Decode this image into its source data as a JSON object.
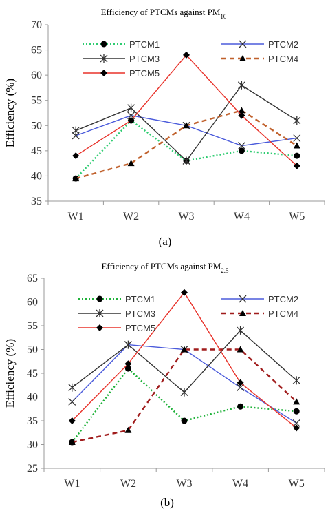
{
  "chart_data": [
    {
      "type": "line",
      "title": "Efficiency of PTCMs against PM",
      "title_subscript": "10",
      "ylabel": "Efficiency (%)",
      "xlabel": "",
      "categories": [
        "W1",
        "W2",
        "W3",
        "W4",
        "W5"
      ],
      "ylim": [
        35,
        70
      ],
      "yticks": [
        35,
        40,
        45,
        50,
        55,
        60,
        65,
        70
      ],
      "grid": false,
      "legend": "top-left, 3 rows x 2 columns",
      "caption": "(a)",
      "series": [
        {
          "name": "PTCM1",
          "values": [
            39.5,
            51,
            43,
            45,
            44
          ],
          "color": "#2ecc71",
          "dash": "dotted",
          "marker": "circle"
        },
        {
          "name": "PTCM2",
          "values": [
            48,
            52,
            50,
            46,
            47.5
          ],
          "color": "#4b5bdb",
          "dash": "solid",
          "marker": "x"
        },
        {
          "name": "PTCM3",
          "values": [
            49,
            53.5,
            43,
            58,
            51
          ],
          "color": "#333333",
          "dash": "solid",
          "marker": "asterisk"
        },
        {
          "name": "PTCM4",
          "values": [
            39.5,
            42.5,
            50,
            53,
            46
          ],
          "color": "#c0602b",
          "dash": "dashed",
          "marker": "triangle"
        },
        {
          "name": "PTCM5",
          "values": [
            44,
            51,
            64,
            52,
            42
          ],
          "color": "#e8322a",
          "dash": "solid",
          "marker": "diamond"
        }
      ]
    },
    {
      "type": "line",
      "title": "Efficiency of PTCMs against PM",
      "title_subscript": "2.5",
      "ylabel": "Efficiency (%)",
      "xlabel": "",
      "categories": [
        "W1",
        "W2",
        "W3",
        "W4",
        "W5"
      ],
      "ylim": [
        25,
        65
      ],
      "yticks": [
        25,
        30,
        35,
        40,
        45,
        50,
        55,
        60,
        65
      ],
      "grid": false,
      "legend": "top-left, 3 rows x 2 columns",
      "caption": "(b)",
      "series": [
        {
          "name": "PTCM1",
          "values": [
            30.5,
            46,
            35,
            38,
            37
          ],
          "color": "#1fb23a",
          "dash": "dotted",
          "marker": "circle"
        },
        {
          "name": "PTCM2",
          "values": [
            39,
            51,
            50,
            42,
            34.5
          ],
          "color": "#4b5bdb",
          "dash": "solid",
          "marker": "x"
        },
        {
          "name": "PTCM3",
          "values": [
            42,
            51,
            41,
            54,
            43.5
          ],
          "color": "#333333",
          "dash": "solid",
          "marker": "asterisk"
        },
        {
          "name": "PTCM4",
          "values": [
            30.5,
            33,
            50,
            50,
            39
          ],
          "color": "#a01c1c",
          "dash": "dashed",
          "marker": "triangle"
        },
        {
          "name": "PTCM5",
          "values": [
            35,
            47,
            62,
            43,
            33.5
          ],
          "color": "#e8322a",
          "dash": "solid",
          "marker": "diamond"
        }
      ]
    }
  ]
}
